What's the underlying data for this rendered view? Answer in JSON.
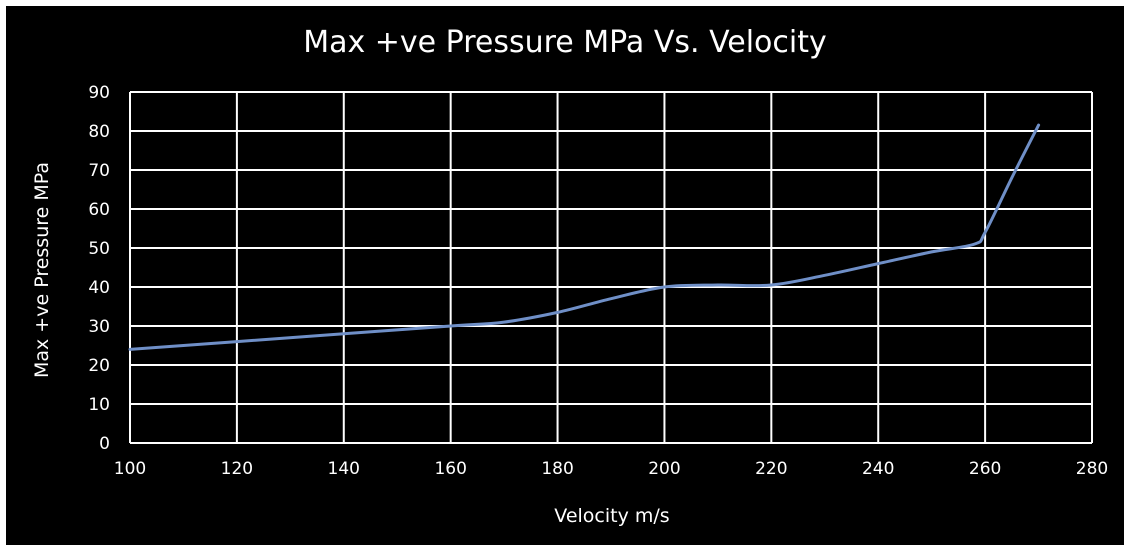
{
  "chart_data": {
    "type": "line",
    "title": "Max +ve Pressure MPa Vs. Velocity",
    "xlabel": "Velocity m/s",
    "ylabel": "Max +ve Pressure MPa",
    "xlim": [
      100,
      280
    ],
    "ylim": [
      0,
      90
    ],
    "xticks": [
      100,
      120,
      140,
      160,
      180,
      200,
      220,
      240,
      260,
      280
    ],
    "yticks": [
      0,
      10,
      20,
      30,
      40,
      50,
      60,
      70,
      80,
      90
    ],
    "grid": true,
    "legend": "none",
    "smooth": true,
    "series": [
      {
        "x": [
          100,
          120,
          140,
          160,
          170,
          180,
          190,
          200,
          210,
          220,
          230,
          240,
          250,
          258,
          260,
          265,
          270
        ],
        "y": [
          24,
          26,
          28,
          30,
          31,
          33.5,
          37,
          40,
          40.5,
          40.5,
          43,
          46,
          49,
          51,
          54,
          68,
          81.5
        ],
        "color": "#6f8fc7"
      }
    ]
  },
  "colors": {
    "background": "#000000",
    "grid": "#ffffff",
    "text": "#ffffff",
    "line": "#6f8fc7"
  }
}
